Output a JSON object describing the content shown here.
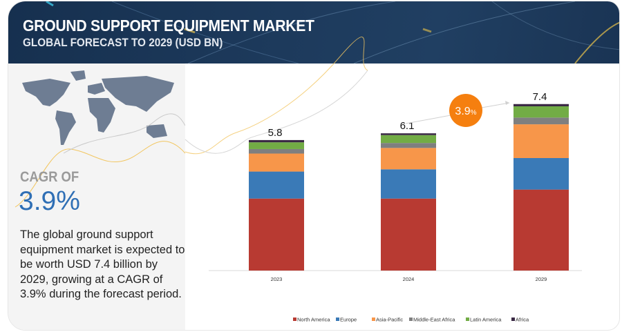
{
  "header": {
    "title": "GROUND SUPPORT EQUIPMENT MARKET",
    "subtitle": "GLOBAL FORECAST TO 2029 (USD BN)"
  },
  "summary": {
    "cagr_label": "CAGR OF",
    "cagr_value": "3.9%",
    "description": "The global ground support equipment market is expected to be worth USD 7.4 billion by 2029, growing at a CAGR of 3.9% during the forecast period."
  },
  "colors": {
    "North America": "#b83a32",
    "Europe": "#3a7ab7",
    "Asia-Pacific": "#f7964a",
    "Middle-East Africa": "#7f7f7f",
    "Latin America": "#72ac45",
    "Africa": "#3b2a45",
    "badge": "#f57f0f"
  },
  "chart_data": {
    "type": "bar",
    "stacked": true,
    "title": "GROUND SUPPORT EQUIPMENT MARKET — GLOBAL FORECAST TO 2029 (USD BN)",
    "categories": [
      "2023",
      "2024",
      "2029"
    ],
    "totals": [
      "5.8",
      "6.1",
      "7.4"
    ],
    "series": [
      {
        "name": "North America",
        "values": [
          3.2,
          3.2,
          3.6
        ]
      },
      {
        "name": "Europe",
        "values": [
          1.2,
          1.3,
          1.4
        ]
      },
      {
        "name": "Asia-Pacific",
        "values": [
          0.8,
          0.95,
          1.5
        ]
      },
      {
        "name": "Middle-East Africa",
        "values": [
          0.2,
          0.22,
          0.3
        ]
      },
      {
        "name": "Latin America",
        "values": [
          0.3,
          0.35,
          0.5
        ]
      },
      {
        "name": "Africa",
        "values": [
          0.1,
          0.08,
          0.1
        ]
      }
    ],
    "cagr_badge": "3.9",
    "cagr_badge_unit": "%",
    "legend_position": "bottom",
    "ylim": [
      0,
      8
    ],
    "grid": false
  }
}
